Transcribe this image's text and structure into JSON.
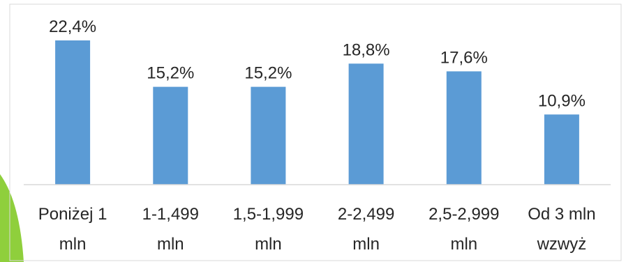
{
  "colors": {
    "bar": "#5b9bd5",
    "axis": "#d9d9d9",
    "text": "#262626",
    "accent": "#8fcf3c",
    "frame": "#d9d9d9"
  },
  "chart_data": {
    "type": "bar",
    "title": "",
    "xlabel": "",
    "ylabel": "",
    "categories": [
      [
        "Poniżej 1",
        "mln"
      ],
      [
        "1-1,499",
        "mln"
      ],
      [
        "1,5-1,999",
        "mln"
      ],
      [
        "2-2,499",
        "mln"
      ],
      [
        "2,5-2,999",
        "mln"
      ],
      [
        "Od 3 mln",
        "wzwyż"
      ]
    ],
    "values": [
      22.4,
      15.2,
      15.2,
      18.8,
      17.6,
      10.9
    ],
    "data_labels": [
      "22,4%",
      "15,2%",
      "15,2%",
      "18,8%",
      "17,6%",
      "10,9%"
    ],
    "unit": "%",
    "ylim": [
      0,
      25
    ],
    "grid": false,
    "legend": "none"
  }
}
